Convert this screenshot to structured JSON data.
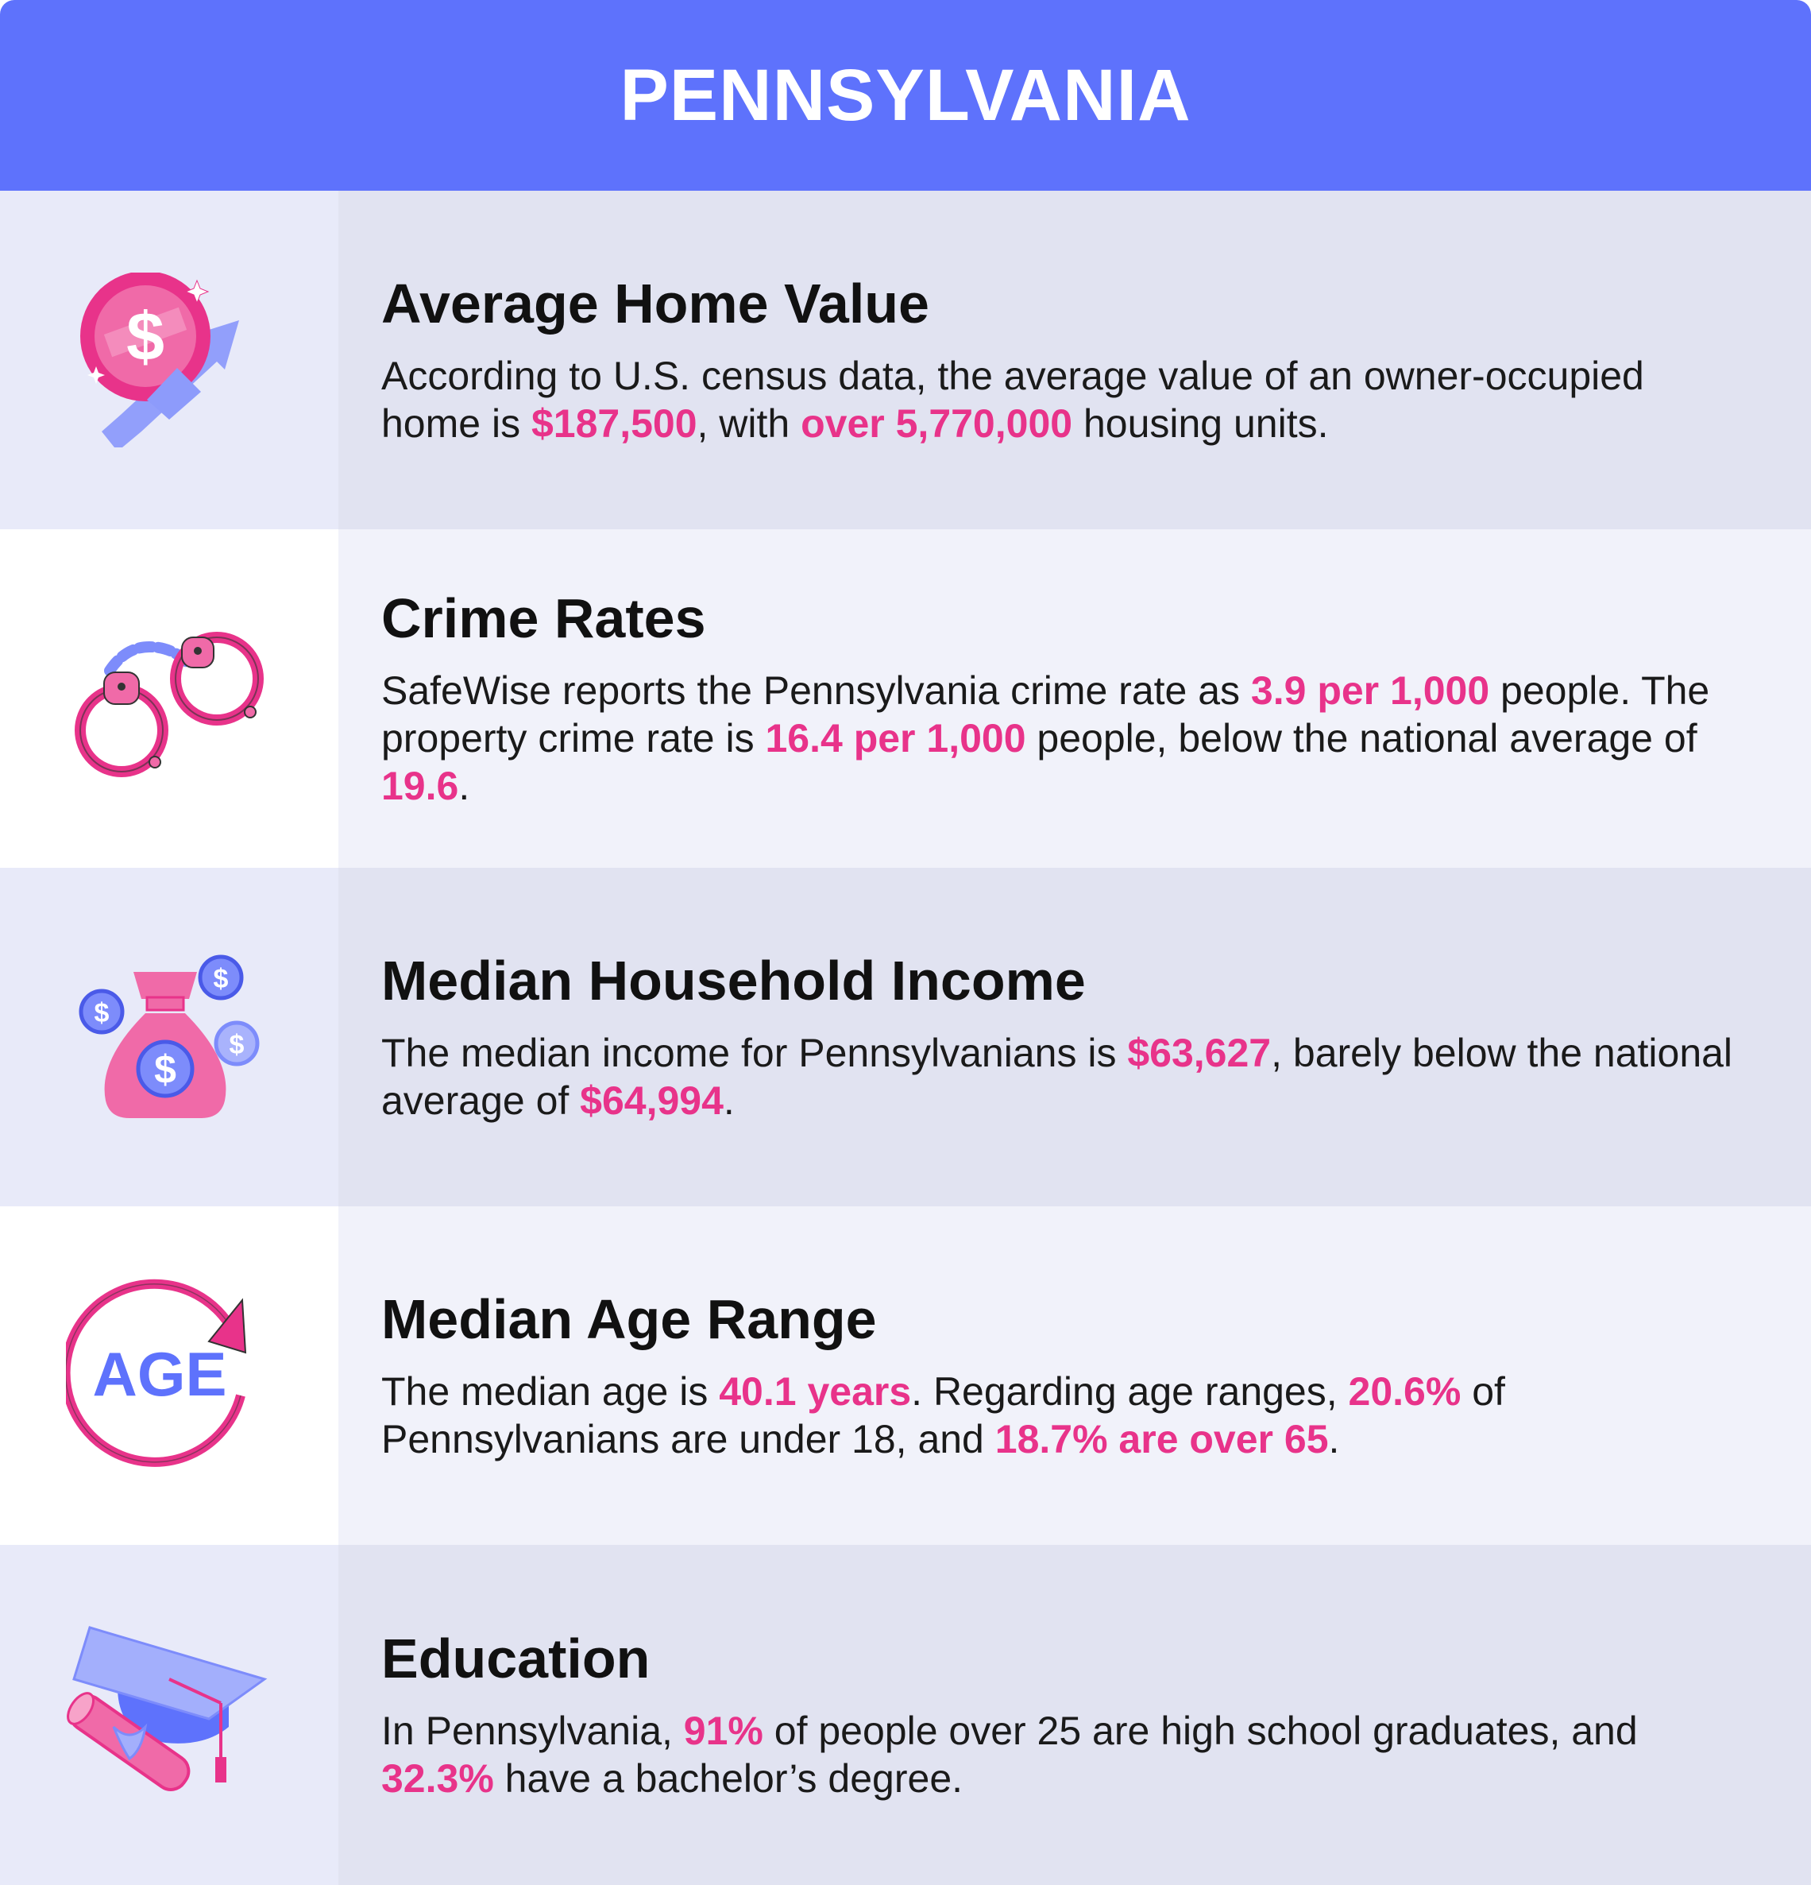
{
  "header": {
    "title": "PENNSYLVANIA"
  },
  "colors": {
    "header_bg": "#5e72fc",
    "accent": "#e8338a",
    "icon_blue": "#7d8cfb"
  },
  "sections": [
    {
      "icon": "dollar-coin-growth-icon",
      "title": "Average Home Value",
      "parts": [
        "According to U.S. census data, the average value of an owner-occupied home is ",
        "$187,500",
        ", with ",
        "over 5,770,000",
        " housing units."
      ]
    },
    {
      "icon": "handcuffs-icon",
      "title": "Crime Rates",
      "parts": [
        "SafeWise reports the Pennsylvania crime rate as ",
        "3.9 per 1,000",
        " people. The property crime rate is ",
        "16.4 per 1,000",
        " people, below the national average of ",
        "19.6",
        "."
      ]
    },
    {
      "icon": "money-bag-icon",
      "title": "Median Household Income",
      "parts": [
        "The median income for Pennsylvanians is ",
        "$63,627",
        ", barely below the national average of ",
        "$64,994",
        "."
      ]
    },
    {
      "icon": "age-cycle-icon",
      "icon_text": "AGE",
      "title": "Median Age Range",
      "parts": [
        "The median age is ",
        "40.1 years",
        ". Regarding age ranges, ",
        "20.6%",
        " of Pennsylvanians are under 18, and ",
        "18.7% are over 65",
        "."
      ]
    },
    {
      "icon": "graduation-cap-diploma-icon",
      "title": "Education",
      "parts": [
        "In Pennsylvania, ",
        "91%",
        " of people over 25 are high school graduates, and ",
        "32.3%",
        " have a bachelor’s degree."
      ]
    }
  ]
}
